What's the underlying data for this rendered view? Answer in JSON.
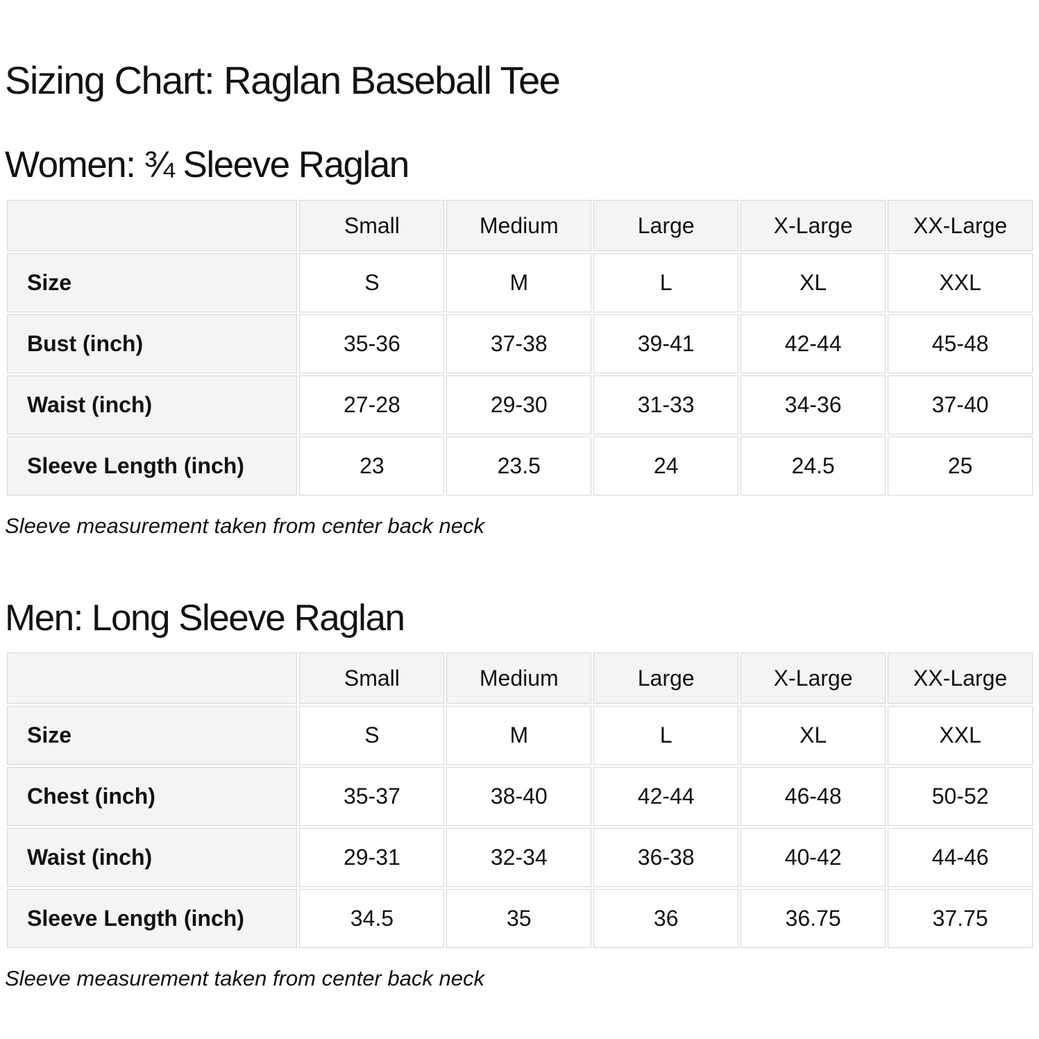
{
  "page": {
    "title": "Sizing Chart: Raglan Baseball Tee",
    "colors": {
      "text": "#121212",
      "cell_background": "#f4f4f4",
      "data_cell_background": "#ffffff",
      "border": "#d6d6d6"
    }
  },
  "sections": [
    {
      "heading": "Women: ¾ Sleeve Raglan",
      "note": "Sleeve measurement taken from center back neck",
      "table": {
        "size_headers": [
          "Small",
          "Medium",
          "Large",
          "X-Large",
          "XX-Large"
        ],
        "rows": [
          {
            "label": "Size",
            "values": [
              "S",
              "M",
              "L",
              "XL",
              "XXL"
            ]
          },
          {
            "label": "Bust (inch)",
            "values": [
              "35-36",
              "37-38",
              "39-41",
              "42-44",
              "45-48"
            ]
          },
          {
            "label": "Waist (inch)",
            "values": [
              "27-28",
              "29-30",
              "31-33",
              "34-36",
              "37-40"
            ]
          },
          {
            "label": "Sleeve Length (inch)",
            "values": [
              "23",
              "23.5",
              "24",
              "24.5",
              "25"
            ]
          }
        ]
      }
    },
    {
      "heading": "Men: Long Sleeve Raglan",
      "note": "Sleeve measurement taken from center back neck",
      "table": {
        "size_headers": [
          "Small",
          "Medium",
          "Large",
          "X-Large",
          "XX-Large"
        ],
        "rows": [
          {
            "label": "Size",
            "values": [
              "S",
              "M",
              "L",
              "XL",
              "XXL"
            ]
          },
          {
            "label": "Chest (inch)",
            "values": [
              "35-37",
              "38-40",
              "42-44",
              "46-48",
              "50-52"
            ]
          },
          {
            "label": "Waist (inch)",
            "values": [
              "29-31",
              "32-34",
              "36-38",
              "40-42",
              "44-46"
            ]
          },
          {
            "label": "Sleeve Length (inch)",
            "values": [
              "34.5",
              "35",
              "36",
              "36.75",
              "37.75"
            ]
          }
        ]
      }
    }
  ]
}
